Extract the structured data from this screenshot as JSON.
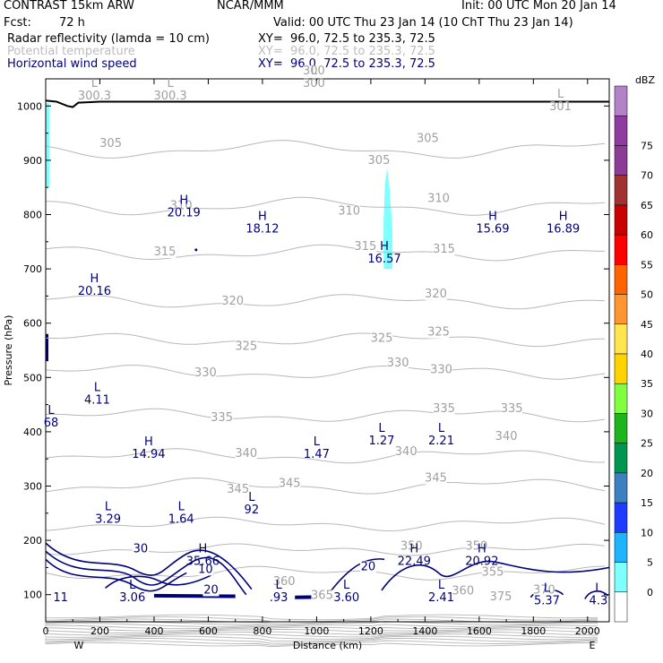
{
  "header": {
    "model": "CONTRAST 15km ARW",
    "org": "NCAR/MMM",
    "init": "Init: 00 UTC Mon 20 Jan 14",
    "fcst_label": "Fcst:",
    "fcst_value": "72 h",
    "valid": "Valid: 00 UTC Thu 23 Jan 14 (10 ChT Thu 23 Jan 14)"
  },
  "fields": [
    {
      "name": "Radar reflectivity (lamda = 10 cm)",
      "xy": "XY=  96.0, 72.5 to 235.3, 72.5",
      "color": "#000000"
    },
    {
      "name": "Potential temperature",
      "xy": "XY=  96.0, 72.5 to 235.3, 72.5",
      "color": "#bdbdbd"
    },
    {
      "name": "Horizontal wind speed",
      "xy": "XY=  96.0, 72.5 to 235.3, 72.5",
      "color": "#00007a"
    }
  ],
  "chart_data": {
    "type": "cross-section",
    "xlabel": "Distance (km)",
    "ylabel": "Pressure (hPa)",
    "xlim": [
      0,
      2080
    ],
    "ylim": [
      1050,
      50
    ],
    "x_ticks": [
      0,
      200,
      400,
      600,
      800,
      1000,
      1200,
      1400,
      1600,
      1800,
      2000
    ],
    "y_ticks": [
      100,
      200,
      300,
      400,
      500,
      600,
      700,
      800,
      900,
      1000
    ],
    "x_end_labels": {
      "left": "W",
      "right": "E"
    },
    "colorbar": {
      "unit": "dBZ",
      "levels": [
        0,
        5,
        10,
        15,
        20,
        25,
        30,
        35,
        40,
        45,
        50,
        55,
        60,
        65,
        70,
        75
      ],
      "colors": [
        "#ffffff",
        "#7fffff",
        "#1eb4ff",
        "#1e3cff",
        "#3c80c0",
        "#009650",
        "#1eb41e",
        "#80ff40",
        "#ffd200",
        "#ffe650",
        "#ff9632",
        "#ff6400",
        "#ff0000",
        "#c80000",
        "#a03232",
        "#8c3c96",
        "#8f3ca0",
        "#b482c8"
      ]
    },
    "theta_contours": [
      {
        "label": "375",
        "x": 1680,
        "p": 90
      },
      {
        "label": "370",
        "x": 1840,
        "p": 102
      },
      {
        "label": "365",
        "x": 1020,
        "p": 92
      },
      {
        "label": "360",
        "x": 880,
        "p": 118
      },
      {
        "label": "360",
        "x": 1540,
        "p": 100
      },
      {
        "label": "355",
        "x": 1650,
        "p": 135
      },
      {
        "label": "350",
        "x": 1350,
        "p": 183
      },
      {
        "label": "350",
        "x": 1590,
        "p": 183
      },
      {
        "label": "345",
        "x": 710,
        "p": 288
      },
      {
        "label": "345",
        "x": 900,
        "p": 298
      },
      {
        "label": "345",
        "x": 1440,
        "p": 308
      },
      {
        "label": "340",
        "x": 740,
        "p": 354
      },
      {
        "label": "340",
        "x": 1330,
        "p": 357
      },
      {
        "label": "340",
        "x": 1700,
        "p": 385
      },
      {
        "label": "335",
        "x": 650,
        "p": 420
      },
      {
        "label": "335",
        "x": 1470,
        "p": 436
      },
      {
        "label": "335",
        "x": 1720,
        "p": 436
      },
      {
        "label": "330",
        "x": 590,
        "p": 502
      },
      {
        "label": "330",
        "x": 1300,
        "p": 520
      },
      {
        "label": "330",
        "x": 1460,
        "p": 508
      },
      {
        "label": "325",
        "x": 740,
        "p": 551
      },
      {
        "label": "325",
        "x": 1240,
        "p": 566
      },
      {
        "label": "325",
        "x": 1450,
        "p": 577
      },
      {
        "label": "320",
        "x": 690,
        "p": 634
      },
      {
        "label": "320",
        "x": 1440,
        "p": 647
      },
      {
        "label": "315",
        "x": 440,
        "p": 725
      },
      {
        "label": "315",
        "x": 1180,
        "p": 735
      },
      {
        "label": "315",
        "x": 1470,
        "p": 730
      },
      {
        "label": "310",
        "x": 500,
        "p": 810
      },
      {
        "label": "310",
        "x": 1120,
        "p": 800
      },
      {
        "label": "310",
        "x": 1450,
        "p": 823
      },
      {
        "label": "305",
        "x": 240,
        "p": 925
      },
      {
        "label": "305",
        "x": 1230,
        "p": 893
      },
      {
        "label": "305",
        "x": 1410,
        "p": 934
      },
      {
        "label": "300",
        "x": 990,
        "p": 1058
      }
    ],
    "theta_extrema": [
      {
        "type": "L",
        "value": "300.3",
        "x": 180,
        "p": 1012
      },
      {
        "type": "L",
        "value": "300.3",
        "x": 460,
        "p": 1012
      },
      {
        "type": "L",
        "value": "300",
        "x": 990,
        "p": 1035
      },
      {
        "type": "L",
        "value": "301",
        "x": 1900,
        "p": 992
      }
    ],
    "wind_contour_labels": [
      {
        "label": "20",
        "x": 610,
        "p": 102
      },
      {
        "label": "30",
        "x": 350,
        "p": 178
      },
      {
        "label": "20",
        "x": 1190,
        "p": 145
      },
      {
        "label": "10",
        "x": 590,
        "p": 140
      },
      {
        "label": "11",
        "x": 55,
        "p": 88
      }
    ],
    "wind_extrema": [
      {
        "type": "L",
        "value": "3.06",
        "x": 320,
        "p": 88
      },
      {
        "type": "L",
        "value": ".93",
        "x": 860,
        "p": 88
      },
      {
        "type": "L",
        "value": "3.60",
        "x": 1110,
        "p": 88
      },
      {
        "type": "L",
        "value": "2.41",
        "x": 1460,
        "p": 88
      },
      {
        "type": "L",
        "value": "5.37",
        "x": 1850,
        "p": 82
      },
      {
        "type": "L",
        "value": "4.3",
        "x": 2040,
        "p": 82
      },
      {
        "type": "H",
        "value": "35.66",
        "x": 580,
        "p": 155
      },
      {
        "type": "H",
        "value": "22.49",
        "x": 1360,
        "p": 155
      },
      {
        "type": "H",
        "value": "20.92",
        "x": 1610,
        "p": 155
      },
      {
        "type": "L",
        "value": "3.29",
        "x": 230,
        "p": 232
      },
      {
        "type": "L",
        "value": "1.64",
        "x": 500,
        "p": 232
      },
      {
        "type": "L",
        "value": "92",
        "x": 760,
        "p": 250
      },
      {
        "type": "H",
        "value": "14.94",
        "x": 380,
        "p": 352
      },
      {
        "type": "L",
        "value": "1.47",
        "x": 1000,
        "p": 352
      },
      {
        "type": "L",
        "value": "1.27",
        "x": 1240,
        "p": 377
      },
      {
        "type": "L",
        "value": "2.21",
        "x": 1460,
        "p": 377
      },
      {
        "type": "L",
        "value": "68",
        "x": 20,
        "p": 410
      },
      {
        "type": "L",
        "value": "4.11",
        "x": 190,
        "p": 452
      },
      {
        "type": "H",
        "value": "20.16",
        "x": 180,
        "p": 652
      },
      {
        "type": "H",
        "value": "16.57",
        "x": 1250,
        "p": 712
      },
      {
        "type": "H",
        "value": "18.12",
        "x": 800,
        "p": 767
      },
      {
        "type": "H",
        "value": "20.19",
        "x": 510,
        "p": 797
      },
      {
        "type": "H",
        "value": "15.69",
        "x": 1650,
        "p": 767
      },
      {
        "type": "H",
        "value": "16.89",
        "x": 1910,
        "p": 767
      }
    ]
  }
}
